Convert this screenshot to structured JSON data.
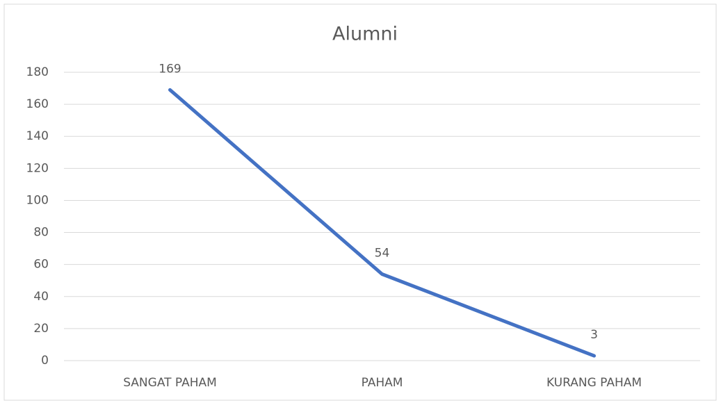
{
  "chart_data": {
    "type": "line",
    "title": "Alumni",
    "categories": [
      "SANGAT PAHAM",
      "PAHAM",
      "KURANG PAHAM"
    ],
    "series": [
      {
        "name": "Alumni",
        "color": "#4472c4",
        "values": [
          169,
          54,
          3
        ]
      }
    ],
    "ylim": [
      0,
      180
    ],
    "yticks": [
      0,
      20,
      40,
      60,
      80,
      100,
      120,
      140,
      160,
      180
    ],
    "grid": true,
    "data_labels": true
  }
}
